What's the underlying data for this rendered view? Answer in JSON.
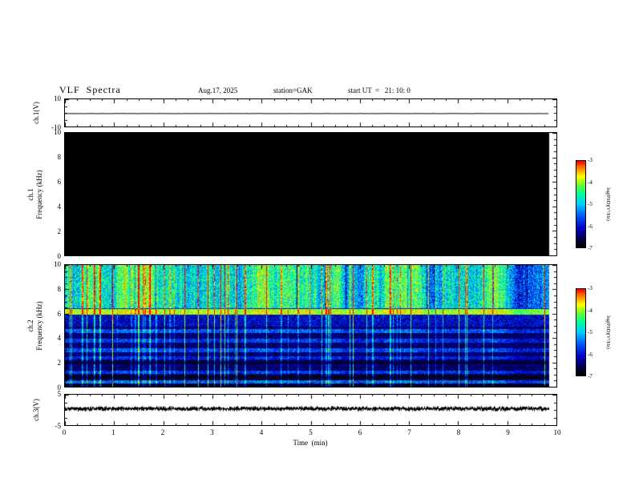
{
  "header": {
    "title": "VLF  Spectra",
    "date": "Aug.17, 2025",
    "station": "station=GAK",
    "start_ut": "start UT  =   21: 10: 0"
  },
  "time_axis": {
    "label": "Time  (min)",
    "range": [
      0,
      10
    ],
    "ticks": [
      0,
      1,
      2,
      3,
      4,
      5,
      6,
      7,
      8,
      9,
      10
    ],
    "data_end_fraction": 0.985
  },
  "colorbar": {
    "label": "log(PSD)(V²/Hz)",
    "min": -7,
    "max": -3,
    "ticks": [
      -3,
      -4,
      -5,
      -6,
      -7
    ]
  },
  "chart_data": [
    {
      "panel": "ch1_voltage",
      "type": "line",
      "ylabel": "ch.1(V)",
      "ylim": [
        -10,
        10
      ],
      "yticks": [
        10,
        -10
      ],
      "signal": "flat_trace",
      "mean_v": -0.5,
      "noise_v": 0.1
    },
    {
      "panel": "ch1_spectrogram",
      "type": "heatmap",
      "ylabel_line1": "ch.1",
      "ylabel_line2": "Frequency (kHz)",
      "ylim": [
        0,
        10
      ],
      "yticks": [
        0,
        2,
        4,
        6,
        8,
        10
      ],
      "content": "no_signal_uniform_floor",
      "uniform_level": -7
    },
    {
      "panel": "ch2_spectrogram",
      "type": "heatmap",
      "ylabel_line1": "ch.2",
      "ylabel_line2": "Frequency (kHz)",
      "ylim": [
        0,
        10
      ],
      "yticks": [
        0,
        2,
        4,
        6,
        8,
        10
      ],
      "base_levels": [
        {
          "f_min": 6.5,
          "f_max": 10,
          "level": -4.7,
          "noise": 0.7
        },
        {
          "f_min": 5.0,
          "f_max": 6.5,
          "level": -6.1,
          "noise": 0.5
        },
        {
          "f_min": 1.0,
          "f_max": 5.0,
          "level": -6.5,
          "noise": 0.45
        },
        {
          "f_min": 0.0,
          "f_max": 1.0,
          "level": -6.8,
          "noise": 0.35
        }
      ],
      "bright_bands": [
        {
          "f": 6.2,
          "width": 0.22,
          "level": -3.9
        },
        {
          "f": 4.6,
          "width": 0.18,
          "level": -5.6
        },
        {
          "f": 3.8,
          "width": 0.16,
          "level": -5.8
        },
        {
          "f": 3.0,
          "width": 0.16,
          "level": -5.7
        },
        {
          "f": 2.4,
          "width": 0.14,
          "level": -5.9
        },
        {
          "f": 1.2,
          "width": 0.14,
          "level": -5.8
        },
        {
          "f": 0.45,
          "width": 0.14,
          "level": -5.5
        }
      ],
      "dark_bands": [
        {
          "f": 2.0,
          "width": 0.12
        },
        {
          "f": 0.8,
          "width": 0.1
        }
      ],
      "vertical_streaks": {
        "probability": 0.08,
        "boost_min": 0.5,
        "boost_max": 2.3
      }
    },
    {
      "panel": "ch3_voltage",
      "type": "line",
      "ylabel": "ch.3(V)",
      "ylim": [
        -5,
        5
      ],
      "yticks": [
        5,
        -5
      ],
      "signal": "dense_noise_band",
      "mean_v": 0.4,
      "band_halfwidth_v": 0.6
    }
  ]
}
